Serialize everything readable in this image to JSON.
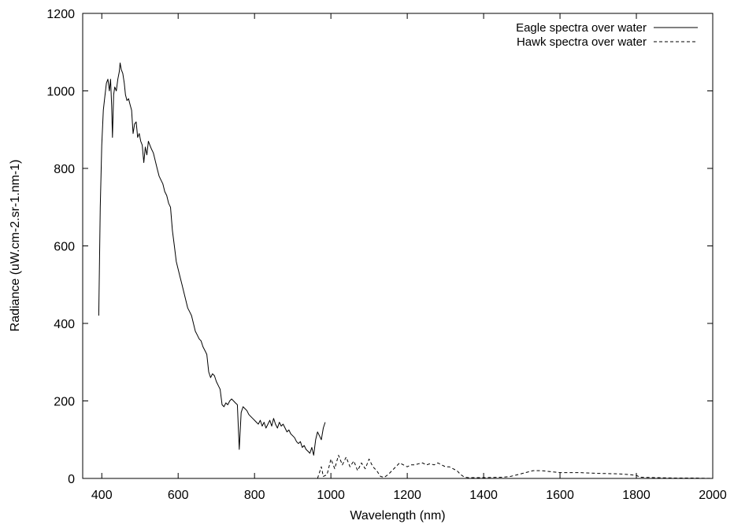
{
  "chart_data": {
    "type": "line",
    "title": "",
    "xlabel": "Wavelength (nm)",
    "ylabel": "Radiance (uW.cm-2.sr-1.nm-1)",
    "xlim": [
      350,
      2000
    ],
    "ylim": [
      0,
      1200
    ],
    "xticks": [
      400,
      600,
      800,
      1000,
      1200,
      1400,
      1600,
      1800,
      2000
    ],
    "yticks": [
      0,
      200,
      400,
      600,
      800,
      1000,
      1200
    ],
    "grid": false,
    "legend": {
      "position": "top-right"
    },
    "series": [
      {
        "name": "Eagle spectra over water",
        "style": "solid",
        "color": "#000000",
        "points": [
          [
            392,
            420
          ],
          [
            396,
            700
          ],
          [
            400,
            860
          ],
          [
            404,
            950
          ],
          [
            408,
            985
          ],
          [
            412,
            1020
          ],
          [
            416,
            1030
          ],
          [
            420,
            1000
          ],
          [
            423,
            1030
          ],
          [
            426,
            960
          ],
          [
            428,
            880
          ],
          [
            431,
            990
          ],
          [
            434,
            1010
          ],
          [
            438,
            1000
          ],
          [
            442,
            1030
          ],
          [
            446,
            1050
          ],
          [
            448,
            1072
          ],
          [
            451,
            1055
          ],
          [
            455,
            1045
          ],
          [
            459,
            1020
          ],
          [
            462,
            990
          ],
          [
            466,
            975
          ],
          [
            470,
            980
          ],
          [
            474,
            965
          ],
          [
            478,
            950
          ],
          [
            482,
            890
          ],
          [
            486,
            915
          ],
          [
            490,
            920
          ],
          [
            494,
            880
          ],
          [
            498,
            890
          ],
          [
            502,
            870
          ],
          [
            506,
            860
          ],
          [
            510,
            815
          ],
          [
            514,
            855
          ],
          [
            518,
            835
          ],
          [
            522,
            870
          ],
          [
            526,
            860
          ],
          [
            530,
            850
          ],
          [
            535,
            840
          ],
          [
            540,
            820
          ],
          [
            545,
            800
          ],
          [
            550,
            780
          ],
          [
            555,
            770
          ],
          [
            560,
            760
          ],
          [
            565,
            740
          ],
          [
            570,
            730
          ],
          [
            575,
            710
          ],
          [
            580,
            700
          ],
          [
            585,
            640
          ],
          [
            590,
            600
          ],
          [
            595,
            560
          ],
          [
            600,
            540
          ],
          [
            605,
            520
          ],
          [
            610,
            500
          ],
          [
            615,
            480
          ],
          [
            620,
            460
          ],
          [
            625,
            440
          ],
          [
            630,
            430
          ],
          [
            635,
            420
          ],
          [
            640,
            400
          ],
          [
            645,
            380
          ],
          [
            650,
            370
          ],
          [
            655,
            360
          ],
          [
            660,
            355
          ],
          [
            665,
            340
          ],
          [
            670,
            330
          ],
          [
            675,
            320
          ],
          [
            680,
            275
          ],
          [
            685,
            260
          ],
          [
            690,
            270
          ],
          [
            695,
            265
          ],
          [
            700,
            250
          ],
          [
            705,
            240
          ],
          [
            710,
            230
          ],
          [
            715,
            190
          ],
          [
            720,
            185
          ],
          [
            725,
            195
          ],
          [
            730,
            190
          ],
          [
            735,
            200
          ],
          [
            740,
            205
          ],
          [
            745,
            200
          ],
          [
            750,
            195
          ],
          [
            755,
            190
          ],
          [
            760,
            75
          ],
          [
            765,
            170
          ],
          [
            770,
            185
          ],
          [
            775,
            180
          ],
          [
            780,
            175
          ],
          [
            785,
            165
          ],
          [
            790,
            160
          ],
          [
            795,
            155
          ],
          [
            800,
            150
          ],
          [
            805,
            145
          ],
          [
            810,
            140
          ],
          [
            815,
            150
          ],
          [
            820,
            135
          ],
          [
            825,
            145
          ],
          [
            830,
            130
          ],
          [
            835,
            140
          ],
          [
            840,
            150
          ],
          [
            845,
            135
          ],
          [
            850,
            155
          ],
          [
            855,
            140
          ],
          [
            860,
            130
          ],
          [
            865,
            145
          ],
          [
            870,
            135
          ],
          [
            875,
            140
          ],
          [
            880,
            130
          ],
          [
            885,
            120
          ],
          [
            890,
            125
          ],
          [
            895,
            115
          ],
          [
            900,
            110
          ],
          [
            905,
            105
          ],
          [
            910,
            95
          ],
          [
            915,
            90
          ],
          [
            920,
            95
          ],
          [
            925,
            80
          ],
          [
            930,
            85
          ],
          [
            935,
            75
          ],
          [
            940,
            70
          ],
          [
            945,
            65
          ],
          [
            950,
            80
          ],
          [
            955,
            60
          ],
          [
            960,
            100
          ],
          [
            965,
            120
          ],
          [
            970,
            110
          ],
          [
            975,
            100
          ],
          [
            980,
            130
          ],
          [
            985,
            145
          ]
        ]
      },
      {
        "name": "Hawk spectra over water",
        "style": "dashed",
        "color": "#000000",
        "points": [
          [
            965,
            0
          ],
          [
            975,
            30
          ],
          [
            980,
            5
          ],
          [
            990,
            10
          ],
          [
            1000,
            50
          ],
          [
            1010,
            25
          ],
          [
            1020,
            60
          ],
          [
            1030,
            35
          ],
          [
            1040,
            55
          ],
          [
            1050,
            30
          ],
          [
            1060,
            45
          ],
          [
            1070,
            20
          ],
          [
            1080,
            40
          ],
          [
            1090,
            25
          ],
          [
            1100,
            50
          ],
          [
            1110,
            30
          ],
          [
            1120,
            20
          ],
          [
            1130,
            5
          ],
          [
            1140,
            3
          ],
          [
            1150,
            10
          ],
          [
            1160,
            20
          ],
          [
            1170,
            30
          ],
          [
            1180,
            40
          ],
          [
            1190,
            35
          ],
          [
            1200,
            30
          ],
          [
            1210,
            35
          ],
          [
            1220,
            35
          ],
          [
            1230,
            38
          ],
          [
            1240,
            40
          ],
          [
            1250,
            35
          ],
          [
            1260,
            38
          ],
          [
            1270,
            35
          ],
          [
            1280,
            40
          ],
          [
            1290,
            35
          ],
          [
            1300,
            30
          ],
          [
            1310,
            30
          ],
          [
            1320,
            25
          ],
          [
            1330,
            20
          ],
          [
            1340,
            10
          ],
          [
            1350,
            3
          ],
          [
            1360,
            2
          ],
          [
            1400,
            2
          ],
          [
            1450,
            3
          ],
          [
            1470,
            5
          ],
          [
            1490,
            10
          ],
          [
            1510,
            15
          ],
          [
            1530,
            20
          ],
          [
            1550,
            20
          ],
          [
            1570,
            18
          ],
          [
            1600,
            15
          ],
          [
            1650,
            15
          ],
          [
            1700,
            13
          ],
          [
            1750,
            12
          ],
          [
            1780,
            10
          ],
          [
            1800,
            8
          ],
          [
            1810,
            3
          ],
          [
            1850,
            2
          ],
          [
            1900,
            1
          ],
          [
            1950,
            1
          ],
          [
            2000,
            0
          ]
        ]
      }
    ]
  }
}
